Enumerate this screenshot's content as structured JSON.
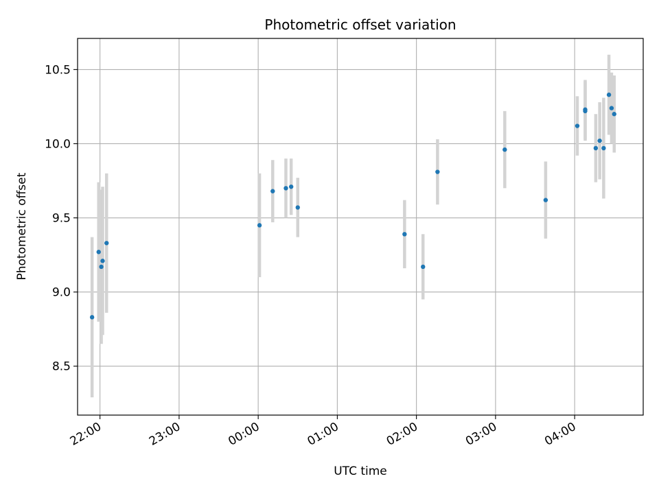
{
  "chart_data": {
    "type": "scatter",
    "title": "Photometric offset variation",
    "xlabel": "UTC time",
    "ylabel": "Photometric offset",
    "x_ticks": [
      "22:00",
      "23:00",
      "00:00",
      "01:00",
      "02:00",
      "03:00",
      "04:00"
    ],
    "y_ticks": [
      "8.5",
      "9.0",
      "9.5",
      "10.0",
      "10.5"
    ],
    "x_tick_times": [
      "22:00",
      "23:00",
      "00:00",
      "01:00",
      "02:00",
      "03:00",
      "04:00"
    ],
    "y_tick_values": [
      8.5,
      9.0,
      9.5,
      10.0,
      10.5
    ],
    "xlim": [
      "21:43",
      "04:52"
    ],
    "ylim": [
      8.17,
      10.71
    ],
    "grid": true,
    "marker_color": "#1f77b4",
    "errorbar_color": "#d3d3d3",
    "points": [
      {
        "t": "21:54",
        "y": 8.83,
        "err": 0.54
      },
      {
        "t": "21:59",
        "y": 9.27,
        "err": 0.47
      },
      {
        "t": "22:01",
        "y": 9.17,
        "err": 0.52
      },
      {
        "t": "22:02",
        "y": 9.21,
        "err": 0.5
      },
      {
        "t": "22:05",
        "y": 9.33,
        "err": 0.47
      },
      {
        "t": "00:01",
        "y": 9.45,
        "err": 0.35
      },
      {
        "t": "00:11",
        "y": 9.68,
        "err": 0.21
      },
      {
        "t": "00:21",
        "y": 9.7,
        "err": 0.2
      },
      {
        "t": "00:25",
        "y": 9.71,
        "err": 0.19
      },
      {
        "t": "00:30",
        "y": 9.57,
        "err": 0.2
      },
      {
        "t": "01:51",
        "y": 9.39,
        "err": 0.23
      },
      {
        "t": "02:05",
        "y": 9.17,
        "err": 0.22
      },
      {
        "t": "02:16",
        "y": 9.81,
        "err": 0.22
      },
      {
        "t": "03:07",
        "y": 9.96,
        "err": 0.26
      },
      {
        "t": "03:38",
        "y": 9.62,
        "err": 0.26
      },
      {
        "t": "04:02",
        "y": 10.12,
        "err": 0.2
      },
      {
        "t": "04:08",
        "y": 10.22,
        "err": 0.2
      },
      {
        "t": "04:08",
        "y": 10.23,
        "err": 0.2
      },
      {
        "t": "04:16",
        "y": 9.97,
        "err": 0.23
      },
      {
        "t": "04:19",
        "y": 10.02,
        "err": 0.26
      },
      {
        "t": "04:22",
        "y": 9.97,
        "err": 0.34
      },
      {
        "t": "04:26",
        "y": 10.33,
        "err": 0.27
      },
      {
        "t": "04:28",
        "y": 10.24,
        "err": 0.24
      },
      {
        "t": "04:30",
        "y": 10.2,
        "err": 0.26
      }
    ]
  }
}
